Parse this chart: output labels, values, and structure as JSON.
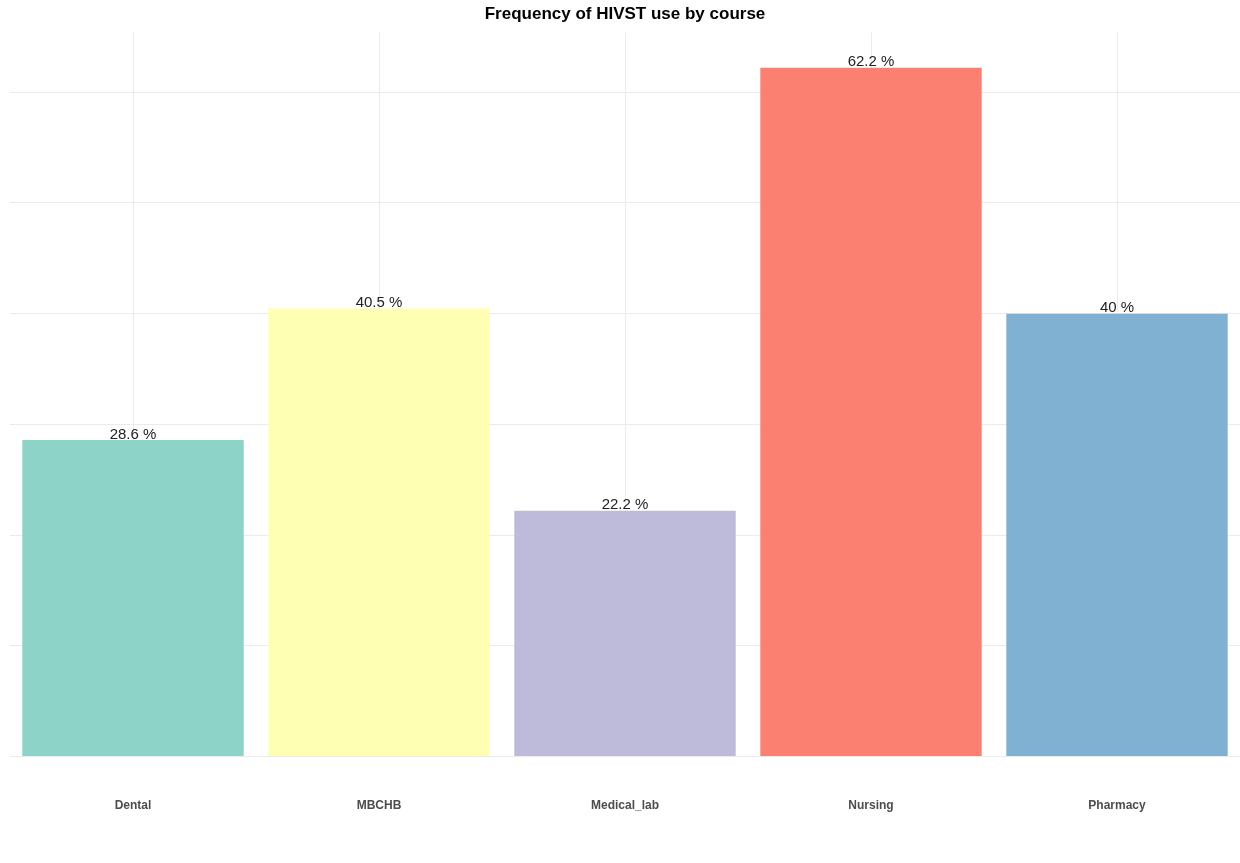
{
  "chart_data": {
    "type": "bar",
    "title": "Frequency of HIVST use by course",
    "categories": [
      "Dental",
      "MBCHB",
      "Medical_lab",
      "Nursing",
      "Pharmacy"
    ],
    "values": [
      28.6,
      40.5,
      22.2,
      62.2,
      40
    ],
    "colors": [
      "#8dd3c7",
      "#ffffb3",
      "#bebada",
      "#fb8072",
      "#80b1d3"
    ],
    "value_labels": [
      "28.6 %",
      "40.5 %",
      "22.2 %",
      "62.2 %",
      "40 %"
    ],
    "ylim": [
      0,
      65.4
    ],
    "yticks": [
      {
        "value": 0,
        "label": null
      },
      {
        "value": 10,
        "label": null
      },
      {
        "value": 20,
        "label": null
      },
      {
        "value": 30,
        "label": null
      },
      {
        "value": 40,
        "label": null
      },
      {
        "value": 50,
        "label": null
      },
      {
        "value": 60,
        "label": null
      }
    ],
    "grid": true,
    "legend": false,
    "tick_labels": "x"
  }
}
